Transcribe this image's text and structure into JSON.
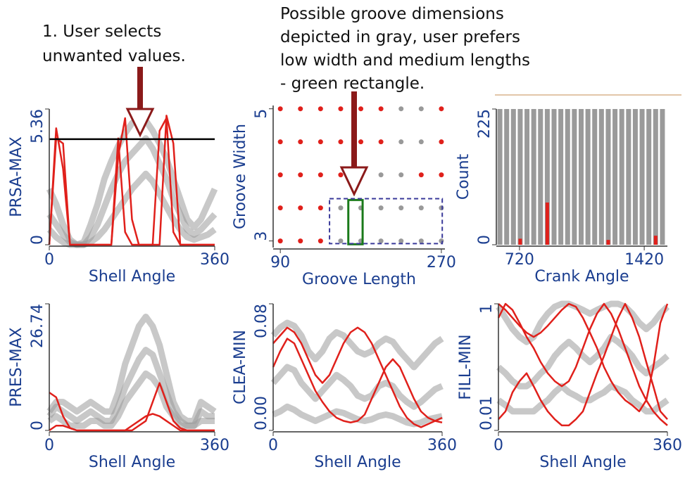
{
  "annotations": {
    "step1": [
      "1. User selects",
      "unwanted values."
    ],
    "step2": [
      "Possible groove dimensions",
      "depicted in gray, user prefers",
      "low width and medium lengths",
      "- green rectangle."
    ]
  },
  "chart_data": [
    {
      "type": "line",
      "xlabel": "Shell Angle",
      "ylabel": "PRSA-MAX",
      "xlim": [
        0,
        360
      ],
      "xticks": [
        0,
        360
      ],
      "ylim": [
        0,
        5.36
      ],
      "yticks": [
        0,
        5.36
      ],
      "threshold": 4.17,
      "threshold_color": "#000000",
      "x": [
        0,
        15,
        30,
        45,
        60,
        75,
        90,
        105,
        120,
        135,
        150,
        165,
        180,
        195,
        210,
        225,
        240,
        255,
        270,
        285,
        300,
        315,
        330,
        345,
        360
      ],
      "series": [
        {
          "color": "#9a9a9a",
          "values": [
            1.2,
            0.8,
            0.4,
            0.1,
            0,
            0,
            0.3,
            0.8,
            1.5,
            2.2,
            2.8,
            3.3,
            3.6,
            3.9,
            4.2,
            3.8,
            3.2,
            2.6,
            1.8,
            1.2,
            0.6,
            0.4,
            0.6,
            0.9,
            1.2
          ]
        },
        {
          "color": "#9a9a9a",
          "values": [
            2.2,
            1.6,
            0.8,
            0.2,
            0,
            0.1,
            0.8,
            1.6,
            2.6,
            3.3,
            3.9,
            4.4,
            4.8,
            5.0,
            4.9,
            4.5,
            4.0,
            3.4,
            2.6,
            1.8,
            1.0,
            0.7,
            1.0,
            1.6,
            2.2
          ]
        },
        {
          "color": "#9a9a9a",
          "values": [
            0.6,
            0.3,
            0.1,
            0,
            0,
            0,
            0.1,
            0.3,
            0.6,
            1.0,
            1.4,
            1.8,
            2.2,
            2.5,
            2.8,
            2.5,
            2.0,
            1.5,
            1.0,
            0.6,
            0.3,
            0.2,
            0.3,
            0.4,
            0.6
          ]
        },
        {
          "color": "#e0201b",
          "values": [
            0,
            4.6,
            3.0,
            0,
            0,
            0,
            0,
            0,
            0,
            0,
            3.5,
            5.0,
            1,
            0,
            0,
            0,
            4.5,
            5.0,
            0.5,
            0,
            0,
            0,
            0,
            0,
            0
          ]
        },
        {
          "color": "#e0201b",
          "values": [
            0,
            4.2,
            4.0,
            0,
            0,
            0,
            0,
            0,
            0,
            0,
            4.2,
            0.5,
            0,
            0,
            0,
            0,
            0,
            5.1,
            4.0,
            0,
            0,
            0,
            0,
            0,
            0
          ]
        }
      ]
    },
    {
      "type": "scatter",
      "xlabel": "Groove Length",
      "ylabel": "Groove Width",
      "xlim": [
        82,
        274
      ],
      "xticks": [
        90,
        270
      ],
      "ylim": [
        2.9,
        5.05
      ],
      "yticks": [
        3,
        5
      ],
      "x": [
        90,
        112.5,
        135,
        157.5,
        180,
        202.5,
        225,
        247.5,
        270,
        90,
        112.5,
        135,
        157.5,
        180,
        202.5,
        225,
        247.5,
        270,
        90,
        112.5,
        135,
        157.5,
        180,
        202.5,
        225,
        247.5,
        270,
        90,
        112.5,
        135,
        157.5,
        180,
        202.5,
        225,
        247.5,
        270,
        90,
        112.5,
        135,
        157.5,
        180,
        202.5,
        225,
        247.5,
        270
      ],
      "y": [
        5,
        5,
        5,
        5,
        5,
        5,
        5,
        5,
        5,
        4.5,
        4.5,
        4.5,
        4.5,
        4.5,
        4.5,
        4.5,
        4.5,
        4.5,
        4,
        4,
        4,
        4,
        4,
        4,
        4,
        4,
        4,
        3.5,
        3.5,
        3.5,
        3.5,
        3.5,
        3.5,
        3.5,
        3.5,
        3.5,
        3,
        3,
        3,
        3,
        3,
        3,
        3,
        3,
        3
      ],
      "colors": [
        "#e0201b",
        "#e0201b",
        "#e0201b",
        "#e0201b",
        "#e0201b",
        "#e0201b",
        "#999999",
        "#999999",
        "#e0201b",
        "#e0201b",
        "#e0201b",
        "#e0201b",
        "#e0201b",
        "#e0201b",
        "#e0201b",
        "#999999",
        "#999999",
        "#e0201b",
        "#e0201b",
        "#e0201b",
        "#e0201b",
        "#e0201b",
        "#999999",
        "#999999",
        "#999999",
        "#e0201b",
        "#e0201b",
        "#e0201b",
        "#e0201b",
        "#e0201b",
        "#999999",
        "#999999",
        "#999999",
        "#999999",
        "#999999",
        "#999999",
        "#e0201b",
        "#e0201b",
        "#e0201b",
        "#999999",
        "#999999",
        "#999999",
        "#999999",
        "#999999",
        "#999999"
      ],
      "selections": [
        {
          "x": [
            166,
            182
          ],
          "y": [
            2.95,
            3.62
          ],
          "color": "#1a7a1a"
        },
        {
          "x": [
            145,
            271
          ],
          "y": [
            2.96,
            3.64
          ],
          "color": "#3a3a9a"
        }
      ]
    },
    {
      "type": "bar",
      "xlabel": "Crank Angle",
      "ylabel": "Count",
      "xlim": [
        590,
        1550
      ],
      "xticks": [
        720,
        1420
      ],
      "ylim": [
        0,
        225
      ],
      "yticks": [
        0,
        225
      ],
      "x": [
        610,
        648,
        686,
        724,
        762,
        800,
        838,
        876,
        914,
        952,
        990,
        1028,
        1066,
        1104,
        1142,
        1180,
        1218,
        1256,
        1294,
        1332,
        1370,
        1408,
        1446,
        1484,
        1522
      ],
      "series": [
        {
          "color": "#9a9a9a",
          "values": [
            225,
            225,
            225,
            225,
            225,
            225,
            225,
            225,
            225,
            225,
            225,
            225,
            225,
            225,
            225,
            225,
            225,
            225,
            225,
            225,
            225,
            225,
            225,
            225,
            225
          ]
        },
        {
          "color": "#e0201b",
          "values": [
            0,
            0,
            0,
            10,
            0,
            0,
            0,
            70,
            0,
            0,
            0,
            0,
            0,
            0,
            0,
            0,
            8,
            0,
            0,
            0,
            0,
            0,
            0,
            15,
            0
          ]
        }
      ]
    },
    {
      "type": "line",
      "xlabel": "Shell Angle",
      "ylabel": "PRES-MAX",
      "xlim": [
        0,
        360
      ],
      "xticks": [
        0,
        360
      ],
      "ylim": [
        0,
        26.74
      ],
      "yticks": [
        0,
        26.74
      ],
      "x": [
        0,
        15,
        30,
        45,
        60,
        75,
        90,
        105,
        120,
        135,
        150,
        165,
        180,
        195,
        210,
        225,
        240,
        255,
        270,
        285,
        300,
        315,
        330,
        345,
        360
      ],
      "series": [
        {
          "color": "#9a9a9a",
          "values": [
            4,
            6,
            6,
            5,
            4,
            5,
            6,
            5,
            4,
            4,
            8,
            14,
            18,
            22,
            24,
            22,
            18,
            12,
            6,
            3,
            2,
            2,
            6,
            5,
            4
          ]
        },
        {
          "color": "#9a9a9a",
          "values": [
            3,
            5,
            4,
            3,
            2,
            3,
            4,
            3,
            2,
            2,
            5,
            9,
            12,
            15,
            17,
            16,
            12,
            8,
            4,
            2,
            1,
            1,
            4,
            3,
            3
          ]
        },
        {
          "color": "#9a9a9a",
          "values": [
            2,
            3,
            2,
            1,
            1,
            1,
            2,
            2,
            1,
            1,
            3,
            6,
            8,
            10,
            12,
            11,
            9,
            5,
            3,
            1,
            1,
            1,
            2,
            2,
            2
          ]
        },
        {
          "color": "#e0201b",
          "values": [
            8,
            7,
            3,
            0.5,
            0,
            0,
            0,
            0,
            0,
            0,
            0,
            0,
            0,
            1,
            2,
            6,
            10,
            6,
            2,
            0.5,
            0,
            0,
            0,
            0,
            0
          ]
        },
        {
          "color": "#e0201b",
          "values": [
            0,
            1,
            1,
            0.5,
            0,
            0,
            0,
            0,
            0,
            0,
            0,
            0,
            1,
            2,
            3,
            3.5,
            3,
            2,
            1,
            0,
            0,
            0,
            0,
            0,
            0
          ]
        }
      ]
    },
    {
      "type": "line",
      "xlabel": "Shell Angle",
      "ylabel": "CLEA-MIN",
      "xlim": [
        0,
        360
      ],
      "xticks": [
        0,
        360
      ],
      "ylim": [
        0,
        0.08
      ],
      "yticks": [
        {
          "value": 0,
          "label": "0.00"
        },
        0.08
      ],
      "x": [
        0,
        15,
        30,
        45,
        60,
        75,
        90,
        105,
        120,
        135,
        150,
        165,
        180,
        195,
        210,
        225,
        240,
        255,
        270,
        285,
        300,
        315,
        330,
        345,
        360
      ],
      "series": [
        {
          "color": "#9a9a9a",
          "values": [
            0.06,
            0.065,
            0.068,
            0.066,
            0.06,
            0.05,
            0.045,
            0.05,
            0.058,
            0.062,
            0.06,
            0.055,
            0.05,
            0.048,
            0.05,
            0.055,
            0.058,
            0.056,
            0.05,
            0.045,
            0.04,
            0.045,
            0.05,
            0.055,
            0.058
          ]
        },
        {
          "color": "#9a9a9a",
          "values": [
            0.03,
            0.035,
            0.04,
            0.038,
            0.03,
            0.025,
            0.02,
            0.025,
            0.03,
            0.035,
            0.032,
            0.028,
            0.022,
            0.02,
            0.022,
            0.028,
            0.03,
            0.028,
            0.022,
            0.018,
            0.015,
            0.018,
            0.022,
            0.026,
            0.028
          ]
        },
        {
          "color": "#9a9a9a",
          "values": [
            0.01,
            0.012,
            0.015,
            0.013,
            0.01,
            0.008,
            0.006,
            0.008,
            0.01,
            0.012,
            0.011,
            0.009,
            0.007,
            0.006,
            0.007,
            0.009,
            0.01,
            0.009,
            0.007,
            0.005,
            0.004,
            0.005,
            0.007,
            0.008,
            0.009
          ]
        },
        {
          "color": "#e0201b",
          "values": [
            0.055,
            0.06,
            0.065,
            0.062,
            0.055,
            0.045,
            0.035,
            0.03,
            0.035,
            0.045,
            0.055,
            0.062,
            0.065,
            0.062,
            0.055,
            0.045,
            0.035,
            0.025,
            0.015,
            0.008,
            0.004,
            0.002,
            0.004,
            0.006,
            0.008
          ]
        },
        {
          "color": "#e0201b",
          "values": [
            0.04,
            0.05,
            0.058,
            0.055,
            0.045,
            0.035,
            0.025,
            0.018,
            0.012,
            0.008,
            0.006,
            0.005,
            0.006,
            0.01,
            0.02,
            0.03,
            0.04,
            0.045,
            0.04,
            0.03,
            0.02,
            0.012,
            0.008,
            0.006,
            0.005
          ]
        }
      ]
    },
    {
      "type": "line",
      "xlabel": "Shell Angle",
      "ylabel": "FILL-MIN",
      "log": true,
      "xlim": [
        0,
        360
      ],
      "xticks": [
        0,
        360
      ],
      "ylim": [
        0.01,
        1
      ],
      "yticks": [
        0.01,
        1
      ],
      "x": [
        0,
        15,
        30,
        45,
        60,
        75,
        90,
        105,
        120,
        135,
        150,
        165,
        180,
        195,
        210,
        225,
        240,
        255,
        270,
        285,
        300,
        315,
        330,
        345,
        360
      ],
      "series": [
        {
          "color": "#9a9a9a",
          "values": [
            0.9,
            0.6,
            0.4,
            0.3,
            0.25,
            0.3,
            0.5,
            0.7,
            0.9,
            1,
            1,
            0.9,
            0.8,
            0.7,
            0.8,
            0.9,
            1,
            1,
            0.9,
            0.7,
            0.5,
            0.4,
            0.5,
            0.7,
            0.9
          ]
        },
        {
          "color": "#9a9a9a",
          "values": [
            0.1,
            0.08,
            0.06,
            0.05,
            0.05,
            0.06,
            0.08,
            0.1,
            0.15,
            0.2,
            0.25,
            0.2,
            0.15,
            0.12,
            0.15,
            0.2,
            0.3,
            0.25,
            0.2,
            0.15,
            0.1,
            0.08,
            0.1,
            0.12,
            0.15
          ]
        },
        {
          "color": "#9a9a9a",
          "values": [
            0.03,
            0.025,
            0.02,
            0.02,
            0.02,
            0.02,
            0.025,
            0.03,
            0.04,
            0.05,
            0.04,
            0.035,
            0.03,
            0.03,
            0.035,
            0.04,
            0.05,
            0.045,
            0.04,
            0.03,
            0.025,
            0.02,
            0.02,
            0.025,
            0.03
          ]
        },
        {
          "color": "#e0201b",
          "values": [
            1,
            0.8,
            0.6,
            0.45,
            0.35,
            0.3,
            0.35,
            0.45,
            0.6,
            0.8,
            1,
            0.9,
            0.6,
            0.35,
            0.2,
            0.1,
            0.06,
            0.04,
            0.03,
            0.025,
            0.02,
            0.03,
            0.1,
            0.5,
            1
          ]
        },
        {
          "color": "#e0201b",
          "values": [
            0.6,
            1,
            0.8,
            0.5,
            0.3,
            0.2,
            0.12,
            0.08,
            0.06,
            0.05,
            0.06,
            0.1,
            0.2,
            0.4,
            0.7,
            1,
            0.7,
            0.4,
            0.2,
            0.1,
            0.05,
            0.03,
            0.02,
            0.015,
            0.012
          ]
        },
        {
          "color": "#e0201b",
          "values": [
            0.015,
            0.02,
            0.04,
            0.06,
            0.08,
            0.05,
            0.03,
            0.02,
            0.015,
            0.012,
            0.012,
            0.015,
            0.02,
            0.04,
            0.08,
            0.15,
            0.3,
            0.6,
            1,
            0.6,
            0.3,
            0.12,
            0.05,
            0.02,
            0.015
          ]
        }
      ]
    }
  ]
}
